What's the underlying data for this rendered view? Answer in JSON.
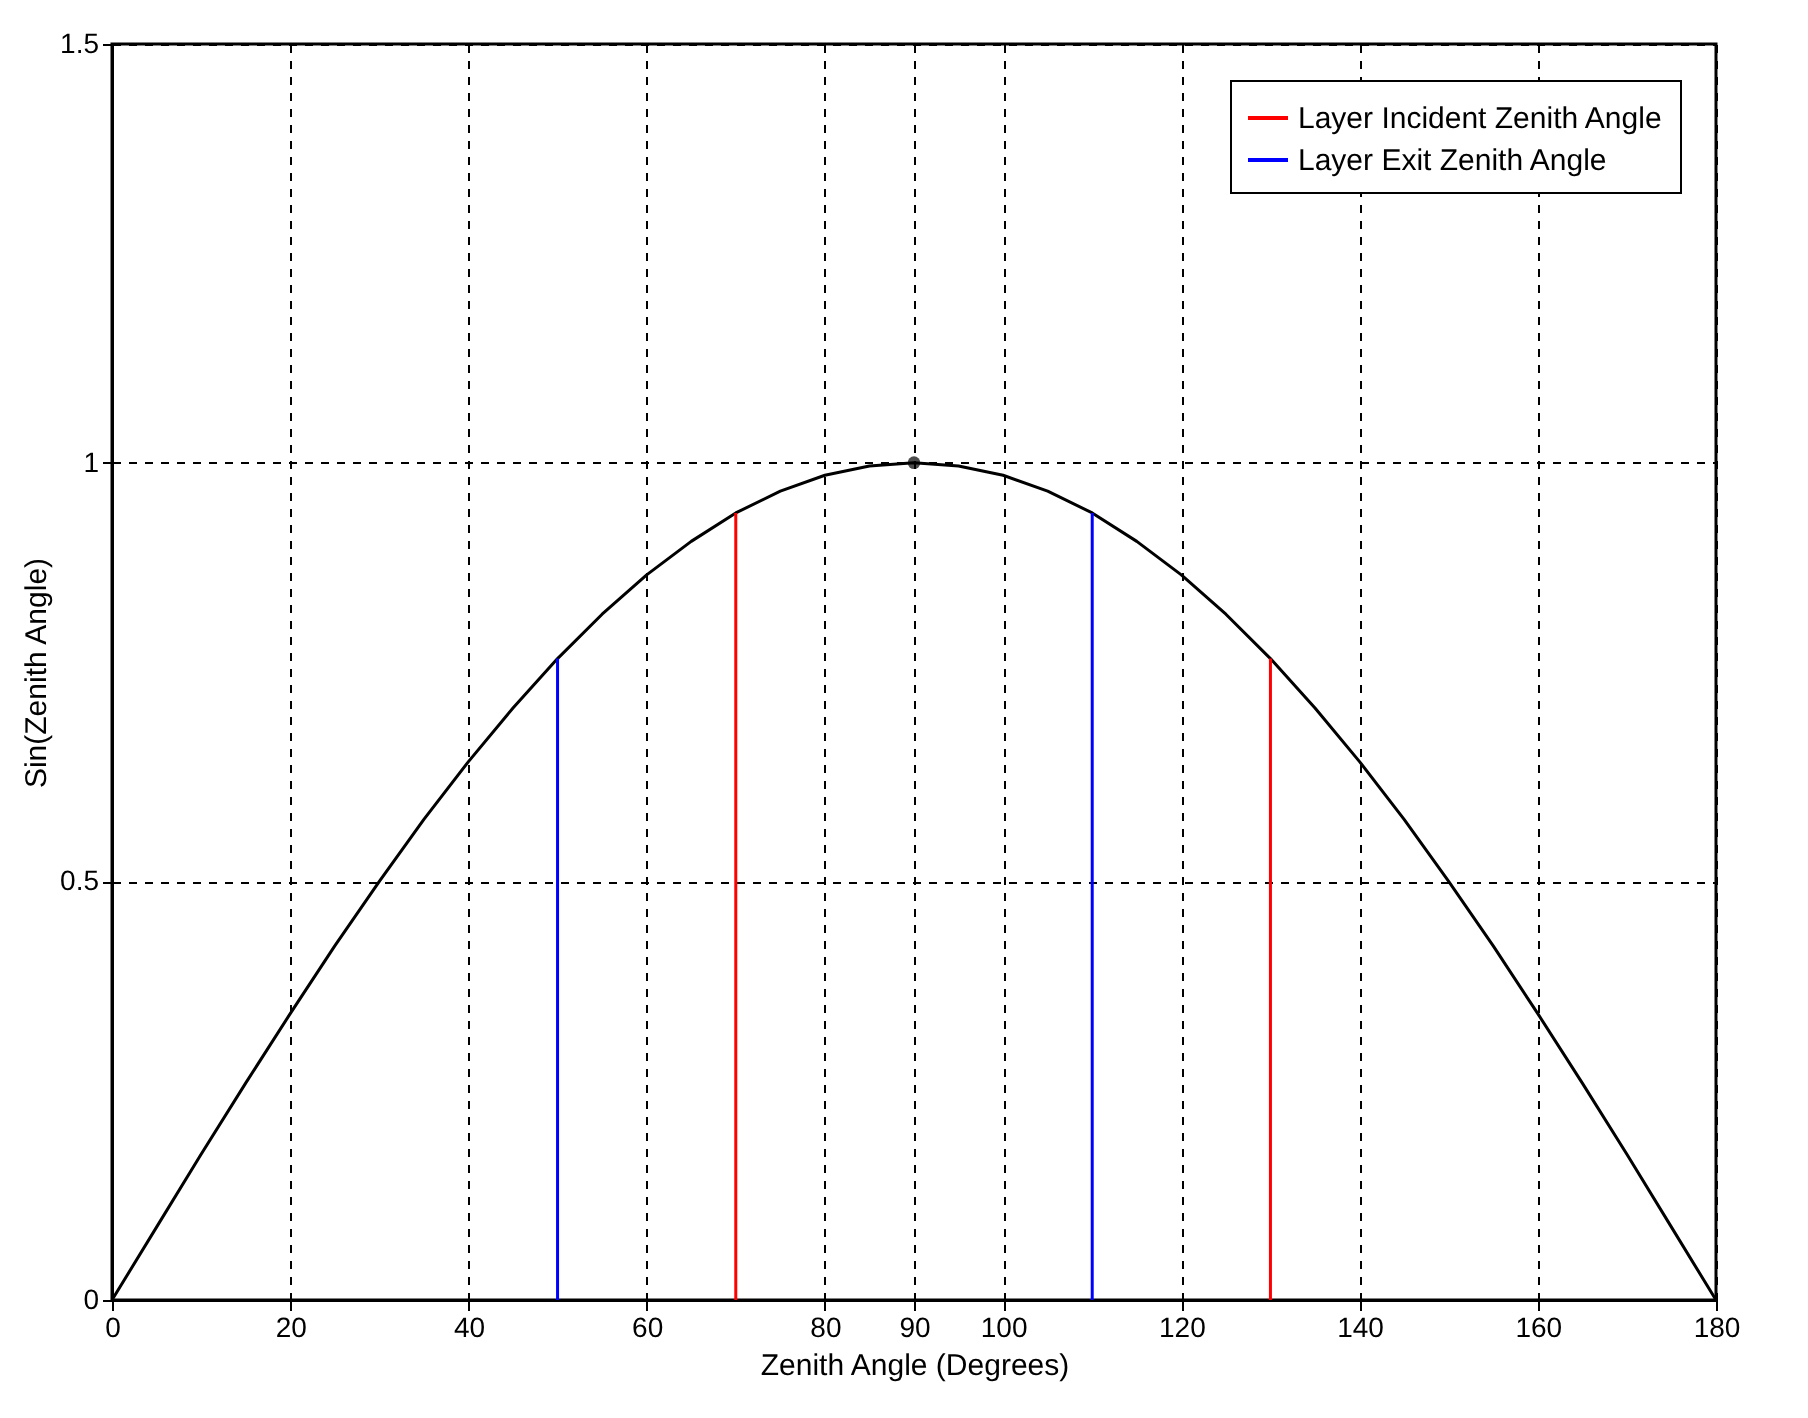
{
  "chart_data": {
    "type": "line",
    "xlabel": "Zenith Angle (Degrees)",
    "ylabel": "Sin(Zenith Angle)",
    "xlim": [
      0,
      180
    ],
    "ylim": [
      0,
      1.5
    ],
    "xticks": [
      0,
      20,
      40,
      60,
      80,
      90,
      100,
      120,
      140,
      160,
      180
    ],
    "yticks": [
      0,
      0.5,
      1,
      1.5
    ],
    "grid": true,
    "legend": "top right",
    "line_style": "solid",
    "series": [
      {
        "color": "#000000",
        "x": [
          0,
          5,
          10,
          15,
          20,
          25,
          30,
          35,
          40,
          45,
          50,
          55,
          60,
          65,
          70,
          75,
          80,
          85,
          90,
          95,
          100,
          105,
          110,
          115,
          120,
          125,
          130,
          135,
          140,
          145,
          150,
          155,
          160,
          165,
          170,
          175,
          180
        ],
        "values": [
          0,
          0.087,
          0.174,
          0.259,
          0.342,
          0.423,
          0.5,
          0.574,
          0.643,
          0.707,
          0.766,
          0.819,
          0.866,
          0.906,
          0.94,
          0.966,
          0.985,
          0.996,
          1,
          0.996,
          0.985,
          0.966,
          0.94,
          0.906,
          0.866,
          0.819,
          0.766,
          0.707,
          0.643,
          0.574,
          0.5,
          0.423,
          0.342,
          0.259,
          0.174,
          0.087,
          0
        ]
      },
      {
        "name": "Layer Incident Zenith Angle",
        "color": "#ff0000",
        "x": [
          70,
          70,
          null,
          130,
          130
        ],
        "values": [
          0,
          0.94,
          null,
          0,
          0.766
        ]
      },
      {
        "name": "Layer Exit Zenith Angle",
        "color": "#0000ff",
        "x": [
          50,
          50,
          null,
          110,
          110
        ],
        "values": [
          0,
          0.766,
          null,
          0,
          0.94
        ]
      },
      {
        "type": "scatter",
        "marker": "circle",
        "color": "#000000",
        "x": [
          90
        ],
        "values": [
          1
        ]
      }
    ]
  }
}
